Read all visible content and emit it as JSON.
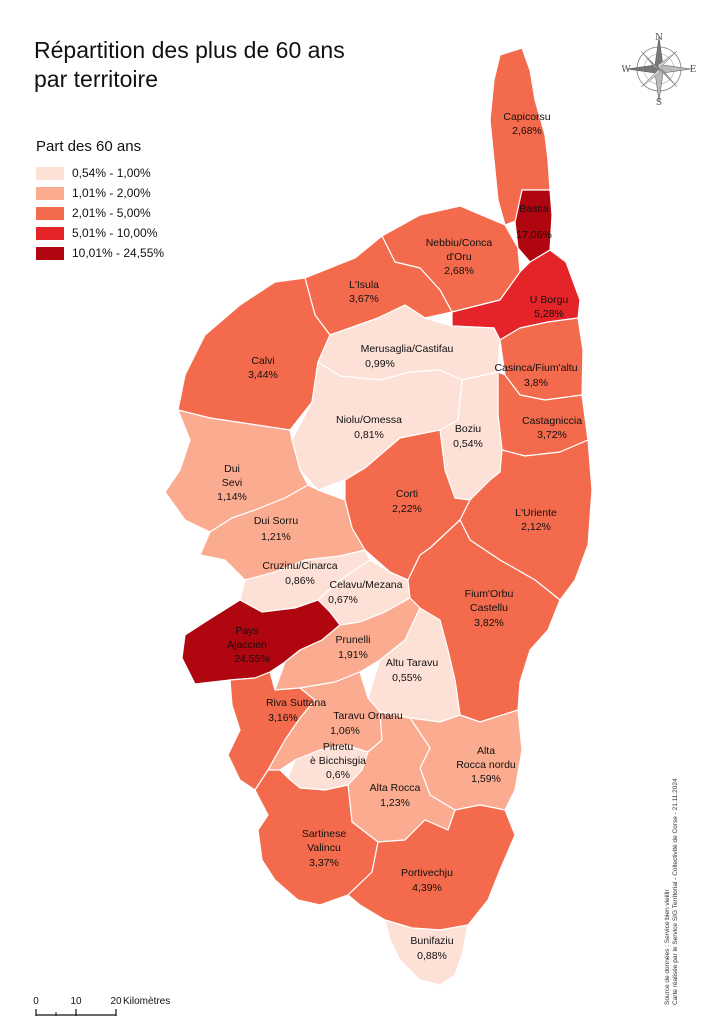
{
  "title_line1": "Répartition des plus de 60 ans",
  "title_line2": "par territoire",
  "legend": {
    "title": "Part des 60 ans",
    "classes": [
      {
        "label": "0,54% - 1,00%",
        "color": "#fde0d6"
      },
      {
        "label": "1,01% - 2,00%",
        "color": "#fbab8f"
      },
      {
        "label": "2,01% - 5,00%",
        "color": "#f36a4c"
      },
      {
        "label": "5,01% - 10,00%",
        "color": "#e42428"
      },
      {
        "label": "10,01% - 24,55%",
        "color": "#b0060f"
      }
    ]
  },
  "compass": {
    "n": "N",
    "s": "S",
    "e": "E",
    "w": "W"
  },
  "territories": [
    {
      "name": "Capicorsu",
      "value": "2,68%"
    },
    {
      "name": "Bastia",
      "value": "17,06%"
    },
    {
      "name": "Nebbiu/Conca d'Oru",
      "value": "2,68%"
    },
    {
      "name": "L'Isula",
      "value": "3,67%"
    },
    {
      "name": "U Borgu",
      "value": "5,28%"
    },
    {
      "name": "Calvi",
      "value": "3,44%"
    },
    {
      "name": "Merusaglia/Castifau",
      "value": "0,99%"
    },
    {
      "name": "Casinca/Fium'altu",
      "value": "3,8%"
    },
    {
      "name": "Castagniccia",
      "value": "3,72%"
    },
    {
      "name": "Niolu/Omessa",
      "value": "0,81%"
    },
    {
      "name": "Boziu",
      "value": "0,54%"
    },
    {
      "name": "Dui Sevi",
      "value": "1,14%"
    },
    {
      "name": "Corti",
      "value": "2,22%"
    },
    {
      "name": "L'Uriente",
      "value": "2,12%"
    },
    {
      "name": "Dui Sorru",
      "value": "1,21%"
    },
    {
      "name": "Cruzinu/Cinarca",
      "value": "0,86%"
    },
    {
      "name": "Celavu/Mezana",
      "value": "0,67%"
    },
    {
      "name": "Fium'Orbu Castellu",
      "value": "3,82%"
    },
    {
      "name": "Pays Ajaccien",
      "value": "24,55%"
    },
    {
      "name": "Prunelli",
      "value": "1,91%"
    },
    {
      "name": "Altu Taravu",
      "value": "0,55%"
    },
    {
      "name": "Riva Suttana",
      "value": "3,16%"
    },
    {
      "name": "Taravu Ornanu",
      "value": "1,06%"
    },
    {
      "name": "Pitretu è Bicchisgia",
      "value": "0,6%"
    },
    {
      "name": "Alta Rocca nordu",
      "value": "1,59%"
    },
    {
      "name": "Alta Rocca",
      "value": "1,23%"
    },
    {
      "name": "Sartinese Valincu",
      "value": "3,37%"
    },
    {
      "name": "Portivechju",
      "value": "4,39%"
    },
    {
      "name": "Bunifaziu",
      "value": "0,88%"
    }
  ],
  "scale": {
    "t0": "0",
    "t1": "10",
    "t2": "20",
    "unit": "Kilomètres"
  },
  "credits": {
    "line1": "Source de données : Service bien vieillir",
    "line2": "Carte réalisée par le Service SIG Territorial - Collectivité de Corse - 21.11.2024"
  }
}
